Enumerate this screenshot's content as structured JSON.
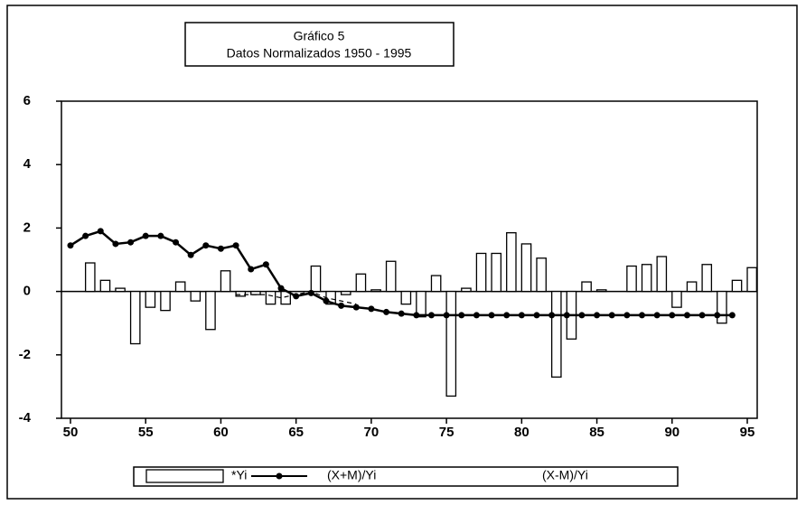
{
  "chart_data": {
    "type": "bar_line",
    "title": "Gráfico 5",
    "subtitle": "Datos Normalizados 1950 - 1995",
    "x": [
      50,
      51,
      52,
      53,
      54,
      55,
      56,
      57,
      58,
      59,
      60,
      61,
      62,
      63,
      64,
      65,
      66,
      67,
      68,
      69,
      70,
      71,
      72,
      73,
      74,
      75,
      76,
      77,
      78,
      79,
      80,
      81,
      82,
      83,
      84,
      85,
      86,
      87,
      88,
      89,
      90,
      91,
      92,
      93,
      94,
      95
    ],
    "xlim": [
      49.4,
      95.66
    ],
    "xticks": [
      50,
      55,
      60,
      65,
      70,
      75,
      80,
      85,
      90,
      95
    ],
    "ylim": [
      -4,
      6
    ],
    "yticks": [
      -4,
      -2,
      0,
      2,
      4,
      6
    ],
    "series": [
      {
        "name": "*Yi",
        "kind": "bar",
        "color": "#000000",
        "values": [
          0,
          0.9,
          0.35,
          0.1,
          -1.65,
          -0.5,
          -0.6,
          0.3,
          -0.3,
          -1.2,
          0.65,
          -0.15,
          -0.1,
          -0.4,
          -0.4,
          0,
          0.8,
          -0.4,
          -0.1,
          0.55,
          0.05,
          0.95,
          -0.4,
          -0.8,
          0.5,
          -3.3,
          0.1,
          1.2,
          1.2,
          1.85,
          1.5,
          1.05,
          -2.7,
          -1.5,
          0.3,
          0.05,
          0,
          0.8,
          0.85,
          1.1,
          -0.5,
          0.3,
          0.85,
          -1.0,
          0.35,
          0.75
        ]
      },
      {
        "name": "(X+M)/Yi",
        "kind": "line",
        "marker": true,
        "color": "#000000",
        "values": [
          1.45,
          1.75,
          1.9,
          1.5,
          1.55,
          1.75,
          1.75,
          1.55,
          1.15,
          1.45,
          1.35,
          1.45,
          0.7,
          0.85,
          0.1,
          -0.15,
          -0.05,
          -0.3,
          -0.45,
          -0.5,
          -0.55,
          -0.65,
          -0.7,
          -0.75,
          -0.75,
          -0.75,
          -0.75,
          -0.75,
          -0.75,
          -0.75,
          -0.75,
          -0.75,
          -0.75,
          -0.75,
          -0.75,
          -0.75,
          -0.75,
          -0.75,
          -0.75,
          -0.75,
          -0.75,
          -0.75,
          -0.75,
          -0.75,
          -0.75,
          null
        ]
      },
      {
        "name": "(X-M)/Yi",
        "kind": "line",
        "marker": false,
        "color": "#000000",
        "values": [
          null,
          null,
          null,
          null,
          null,
          null,
          null,
          null,
          null,
          null,
          null,
          -0.1,
          -0.1,
          -0.1,
          -0.2,
          -0.1,
          0,
          -0.2,
          -0.3,
          -0.4,
          null,
          null,
          null,
          null,
          null,
          null,
          null,
          null,
          null,
          null,
          null,
          null,
          null,
          null,
          null,
          null,
          null,
          null,
          null,
          null,
          null,
          null,
          null,
          null,
          null,
          null
        ]
      }
    ]
  }
}
